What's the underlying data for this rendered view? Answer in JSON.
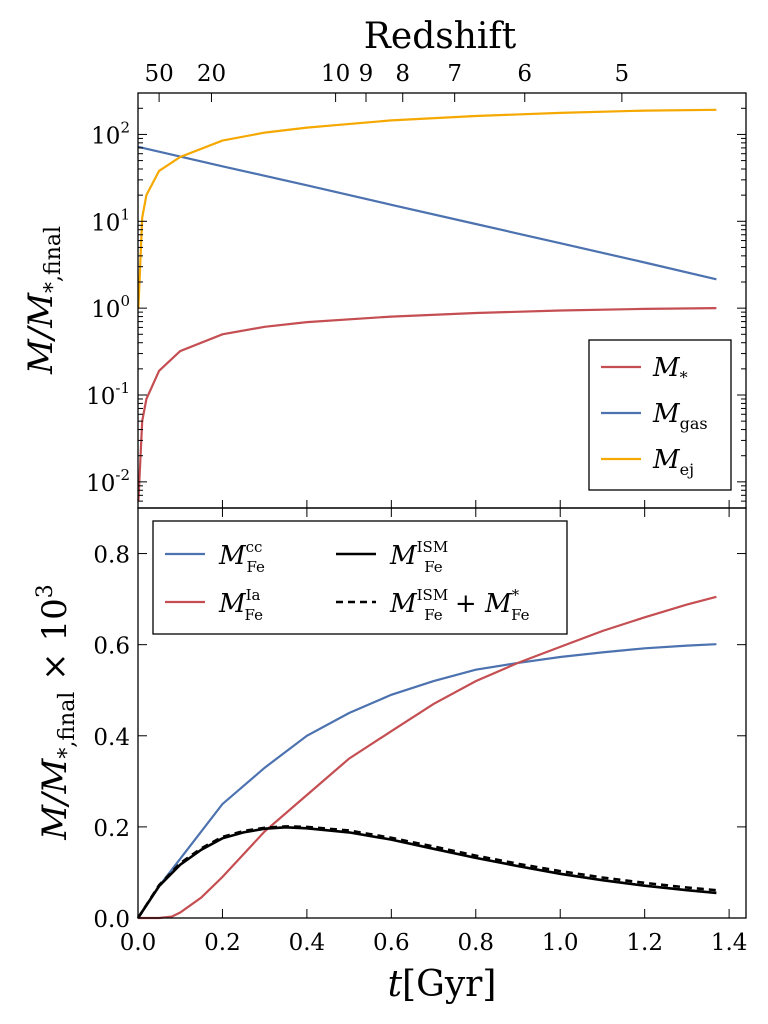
{
  "chart_data": [
    {
      "type": "line",
      "panel": "top",
      "ylabel": "M/M*,final",
      "ylabel_parts": {
        "main": "M/M",
        "sub": "*,final"
      },
      "yscale": "log",
      "ylim": [
        0.005,
        300
      ],
      "xlim": [
        0,
        1.44
      ],
      "top_axis_label": "Redshift",
      "redshift_ticks": [
        {
          "label": "50",
          "t": 0.05
        },
        {
          "label": "20",
          "t": 0.174
        },
        {
          "label": "10",
          "t": 0.468
        },
        {
          "label": "9",
          "t": 0.54
        },
        {
          "label": "8",
          "t": 0.627
        },
        {
          "label": "7",
          "t": 0.75
        },
        {
          "label": "6",
          "t": 0.916
        },
        {
          "label": "5",
          "t": 1.146
        }
      ],
      "ytick_labels": [
        {
          "base": "10",
          "exp": "-2",
          "value": 0.01
        },
        {
          "base": "10",
          "exp": "-1",
          "value": 0.1
        },
        {
          "base": "10",
          "exp": "0",
          "value": 1
        },
        {
          "base": "10",
          "exp": "1",
          "value": 10
        },
        {
          "base": "10",
          "exp": "2",
          "value": 100
        }
      ],
      "legend": {
        "position": "lower right"
      },
      "series": [
        {
          "name": "M*",
          "label_main": "M",
          "label_sub": "*",
          "color": "#c44e52",
          "x": [
            0.001,
            0.01,
            0.02,
            0.05,
            0.1,
            0.2,
            0.3,
            0.4,
            0.6,
            0.8,
            1.0,
            1.2,
            1.37
          ],
          "y": [
            0.006,
            0.05,
            0.09,
            0.19,
            0.32,
            0.5,
            0.61,
            0.69,
            0.8,
            0.88,
            0.94,
            0.98,
            1.0
          ]
        },
        {
          "name": "Mgas",
          "label_main": "M",
          "label_sub": "gas",
          "color": "#4c72b0",
          "x": [
            0.0,
            0.2,
            0.4,
            0.6,
            0.8,
            1.0,
            1.2,
            1.37
          ],
          "y": [
            72,
            43,
            26,
            15.5,
            9.3,
            5.6,
            3.35,
            2.15
          ]
        },
        {
          "name": "Mej",
          "label_main": "M",
          "label_sub": "ej",
          "color": "#f5a800",
          "x": [
            0.001,
            0.01,
            0.02,
            0.05,
            0.1,
            0.2,
            0.3,
            0.4,
            0.6,
            0.8,
            1.0,
            1.2,
            1.37
          ],
          "y": [
            1.0,
            11,
            20,
            38,
            55,
            85,
            105,
            120,
            145,
            163,
            177,
            188,
            192
          ]
        }
      ]
    },
    {
      "type": "line",
      "panel": "bottom",
      "xlabel": "t[Gyr]",
      "xlabel_parts": {
        "main": "t",
        "unit": "[Gyr]"
      },
      "ylabel": "M/M*,final × 10^3",
      "ylabel_parts": {
        "main": "M/M",
        "sub": "*,final",
        "tail": " × 10",
        "exp": "3"
      },
      "ylim": [
        0,
        0.9
      ],
      "xlim": [
        0,
        1.44
      ],
      "xticks": [
        "0.0",
        "0.2",
        "0.4",
        "0.6",
        "0.8",
        "1.0",
        "1.2",
        "1.4"
      ],
      "yticks": [
        "0.0",
        "0.2",
        "0.4",
        "0.6",
        "0.8"
      ],
      "legend": {
        "position": "upper left",
        "ncol": 2
      },
      "series": [
        {
          "name": "MFe cc",
          "label_main": "M",
          "label_sub": "Fe",
          "label_sup": "cc",
          "color": "#4c72b0",
          "dash": "",
          "x": [
            0.0,
            0.05,
            0.1,
            0.2,
            0.3,
            0.4,
            0.5,
            0.6,
            0.7,
            0.8,
            0.9,
            1.0,
            1.1,
            1.2,
            1.3,
            1.37
          ],
          "y": [
            0.0,
            0.07,
            0.13,
            0.25,
            0.33,
            0.4,
            0.45,
            0.49,
            0.52,
            0.545,
            0.56,
            0.573,
            0.583,
            0.592,
            0.598,
            0.601
          ]
        },
        {
          "name": "MFe Ia",
          "label_main": "M",
          "label_sub": "Fe",
          "label_sup": "Ia",
          "color": "#c44e52",
          "dash": "",
          "x": [
            0.0,
            0.05,
            0.08,
            0.1,
            0.15,
            0.2,
            0.3,
            0.4,
            0.5,
            0.6,
            0.7,
            0.8,
            0.9,
            1.0,
            1.1,
            1.2,
            1.3,
            1.37
          ],
          "y": [
            0.0,
            0.0,
            0.003,
            0.012,
            0.045,
            0.09,
            0.19,
            0.27,
            0.35,
            0.41,
            0.47,
            0.52,
            0.56,
            0.595,
            0.63,
            0.66,
            0.688,
            0.705
          ]
        },
        {
          "name": "MFe ISM",
          "label_main": "M",
          "label_sub": "Fe",
          "label_sup": "ISM",
          "color": "#000000",
          "dash": "",
          "x": [
            0.0,
            0.05,
            0.1,
            0.15,
            0.2,
            0.25,
            0.3,
            0.35,
            0.4,
            0.5,
            0.6,
            0.7,
            0.8,
            0.9,
            1.0,
            1.1,
            1.2,
            1.3,
            1.37
          ],
          "y": [
            0.0,
            0.07,
            0.117,
            0.15,
            0.175,
            0.188,
            0.196,
            0.199,
            0.197,
            0.188,
            0.172,
            0.152,
            0.132,
            0.114,
            0.097,
            0.083,
            0.071,
            0.061,
            0.055
          ]
        },
        {
          "name": "MFe ISM + MFe*",
          "label_main": "M",
          "label_sub": "Fe",
          "label_sup": "ISM",
          "label_extra": " + M",
          "label_extra_sub": "Fe",
          "label_extra_sup": "*",
          "color": "#000000",
          "dash": "7,5",
          "x": [
            0.0,
            0.05,
            0.1,
            0.15,
            0.2,
            0.25,
            0.3,
            0.35,
            0.4,
            0.5,
            0.6,
            0.7,
            0.8,
            0.9,
            1.0,
            1.1,
            1.2,
            1.3,
            1.37
          ],
          "y": [
            0.0,
            0.072,
            0.12,
            0.153,
            0.178,
            0.191,
            0.198,
            0.201,
            0.2,
            0.192,
            0.176,
            0.157,
            0.137,
            0.119,
            0.103,
            0.089,
            0.077,
            0.067,
            0.061
          ]
        }
      ]
    }
  ]
}
